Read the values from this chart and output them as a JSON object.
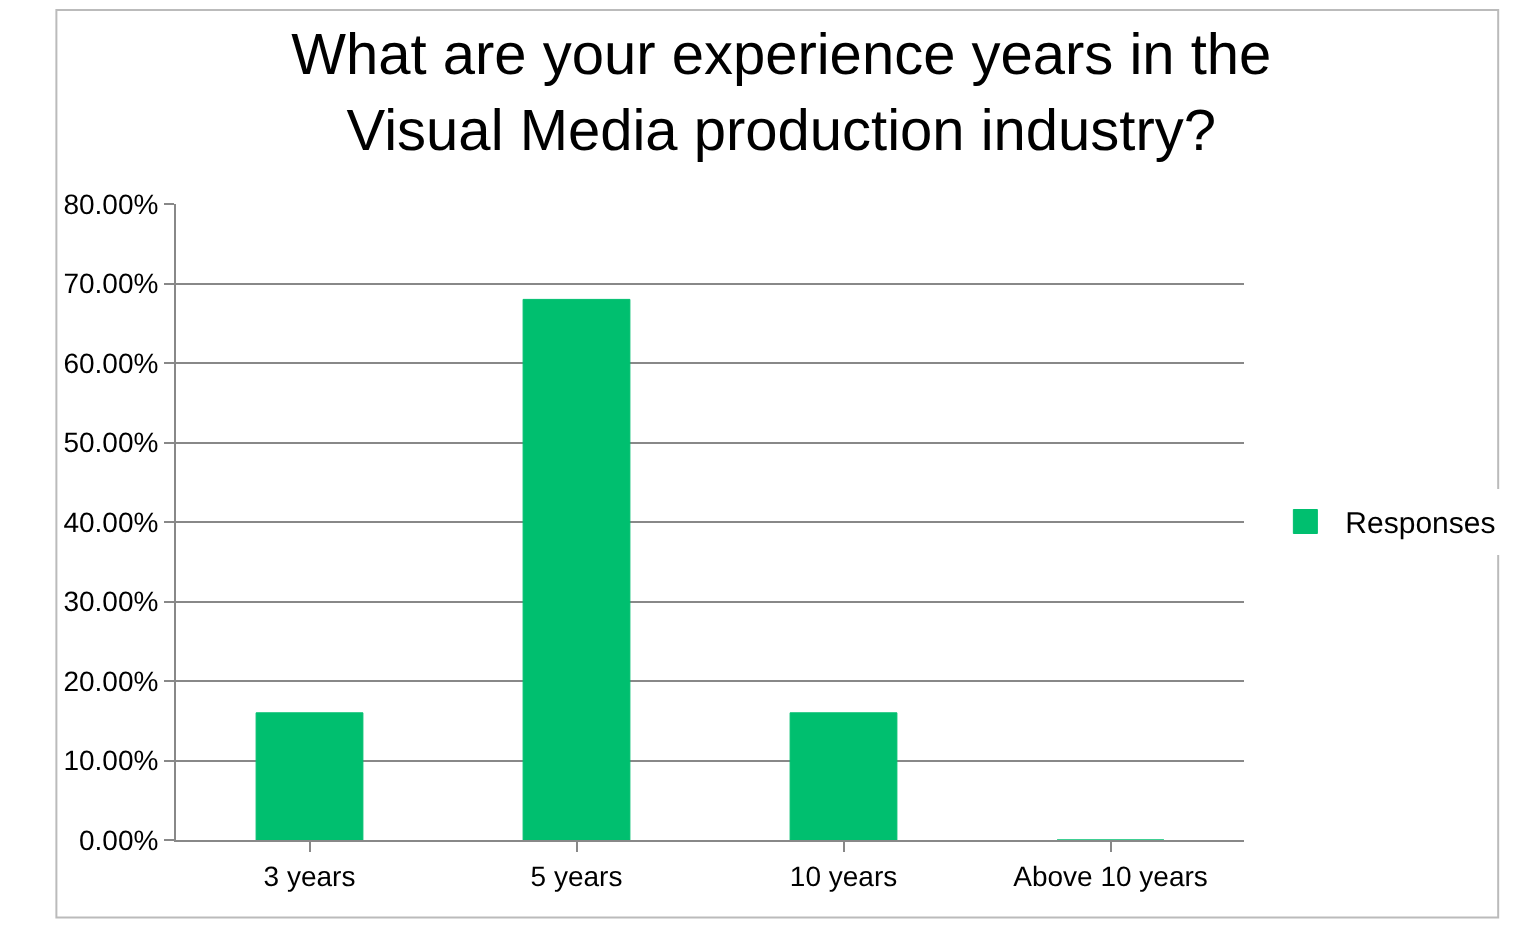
{
  "chart_data": {
    "type": "bar",
    "title": "What are your experience years in the\nVisual Media production industry?",
    "categories": [
      "3 years",
      "5 years",
      "10 years",
      "Above 10 years"
    ],
    "series": [
      {
        "name": "Responses",
        "color": "#00bf6f",
        "values": [
          16,
          68,
          16,
          0
        ]
      }
    ],
    "ylim": [
      0,
      80
    ],
    "yticks": [
      {
        "value": 0,
        "label": "0.00%"
      },
      {
        "value": 10,
        "label": "10.00%"
      },
      {
        "value": 20,
        "label": "20.00%"
      },
      {
        "value": 30,
        "label": "30.00%"
      },
      {
        "value": 40,
        "label": "40.00%"
      },
      {
        "value": 50,
        "label": "50.00%"
      },
      {
        "value": 60,
        "label": "60.00%"
      },
      {
        "value": 70,
        "label": "70.00%"
      },
      {
        "value": 80,
        "label": "80.00%"
      }
    ],
    "grid": "y",
    "legend": "right"
  }
}
